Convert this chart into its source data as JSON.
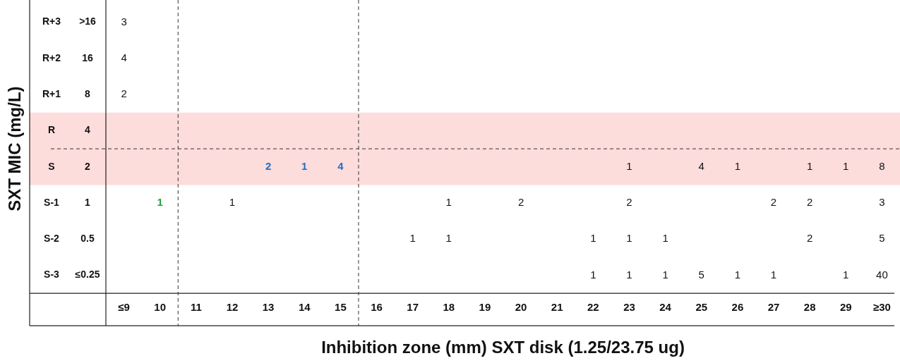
{
  "chart_data": {
    "type": "heatmap",
    "xlabel": "Inhibition zone (mm) SXT disk (1.25/23.75 ug)",
    "ylabel": "SXT MIC (mg/L)",
    "categories": [
      "≤9",
      "10",
      "11",
      "12",
      "13",
      "14",
      "15",
      "16",
      "17",
      "18",
      "19",
      "20",
      "21",
      "22",
      "23",
      "24",
      "25",
      "26",
      "27",
      "28",
      "29",
      "≥30"
    ],
    "y_categories": [
      "R+3",
      "R+2",
      "R+1",
      "R",
      "S",
      "S-1",
      "S-2",
      "S-3"
    ],
    "y2_categories": [
      ">16",
      "16",
      "8",
      "4",
      "2",
      "1",
      "0.5",
      "≤0.25"
    ],
    "cells": [
      [
        3,
        null,
        null,
        null,
        null,
        null,
        null,
        null,
        null,
        null,
        null,
        null,
        null,
        null,
        null,
        null,
        null,
        null,
        null,
        null,
        null,
        null
      ],
      [
        4,
        null,
        null,
        null,
        null,
        null,
        null,
        null,
        null,
        null,
        null,
        null,
        null,
        null,
        null,
        null,
        null,
        null,
        null,
        null,
        null,
        null
      ],
      [
        2,
        null,
        null,
        null,
        null,
        null,
        null,
        null,
        null,
        null,
        null,
        null,
        null,
        null,
        null,
        null,
        null,
        null,
        null,
        null,
        null,
        null
      ],
      [
        null,
        null,
        null,
        null,
        null,
        null,
        null,
        null,
        null,
        null,
        null,
        null,
        null,
        null,
        null,
        null,
        null,
        null,
        null,
        null,
        null,
        null
      ],
      [
        null,
        null,
        null,
        null,
        2,
        1,
        4,
        null,
        null,
        null,
        null,
        null,
        null,
        null,
        1,
        null,
        4,
        1,
        null,
        1,
        1,
        8
      ],
      [
        null,
        1,
        null,
        1,
        null,
        null,
        null,
        null,
        null,
        1,
        null,
        2,
        null,
        null,
        2,
        null,
        null,
        null,
        2,
        2,
        null,
        3
      ],
      [
        null,
        null,
        null,
        null,
        null,
        null,
        null,
        null,
        1,
        1,
        null,
        null,
        null,
        1,
        1,
        1,
        null,
        null,
        null,
        2,
        null,
        5
      ],
      [
        null,
        null,
        null,
        null,
        null,
        null,
        null,
        null,
        null,
        null,
        null,
        null,
        null,
        1,
        1,
        1,
        5,
        1,
        1,
        null,
        1,
        40
      ]
    ],
    "colors": [
      [
        null,
        null,
        null,
        null,
        null,
        null,
        null,
        null,
        null,
        null,
        null,
        null,
        null,
        null,
        null,
        null,
        null,
        null,
        null,
        null,
        null,
        null
      ],
      [
        null,
        null,
        null,
        null,
        null,
        null,
        null,
        null,
        null,
        null,
        null,
        null,
        null,
        null,
        null,
        null,
        null,
        null,
        null,
        null,
        null,
        null
      ],
      [
        null,
        null,
        null,
        null,
        null,
        null,
        null,
        null,
        null,
        null,
        null,
        null,
        null,
        null,
        null,
        null,
        null,
        null,
        null,
        null,
        null,
        null
      ],
      [
        null,
        null,
        null,
        null,
        null,
        null,
        null,
        null,
        null,
        null,
        null,
        null,
        null,
        null,
        null,
        null,
        null,
        null,
        null,
        null,
        null,
        null
      ],
      [
        null,
        null,
        null,
        null,
        "#1f6fc4",
        "#1f6fc4",
        "#1f6fc4",
        null,
        null,
        null,
        null,
        null,
        null,
        null,
        null,
        null,
        null,
        null,
        null,
        null,
        null,
        null
      ],
      [
        null,
        "#22a33a",
        null,
        null,
        null,
        null,
        null,
        null,
        null,
        null,
        null,
        null,
        null,
        null,
        null,
        null,
        null,
        null,
        null,
        null,
        null,
        null
      ],
      [
        null,
        null,
        null,
        null,
        null,
        null,
        null,
        null,
        null,
        null,
        null,
        null,
        null,
        null,
        null,
        null,
        null,
        null,
        null,
        null,
        null,
        null
      ],
      [
        null,
        null,
        null,
        null,
        null,
        null,
        null,
        null,
        null,
        null,
        null,
        null,
        null,
        null,
        null,
        null,
        null,
        null,
        null,
        null,
        null,
        null
      ]
    ],
    "bands": [
      {
        "axis": "y",
        "from": "R",
        "to": "S",
        "color": "#fddcdc"
      }
    ],
    "data_labels": true
  }
}
